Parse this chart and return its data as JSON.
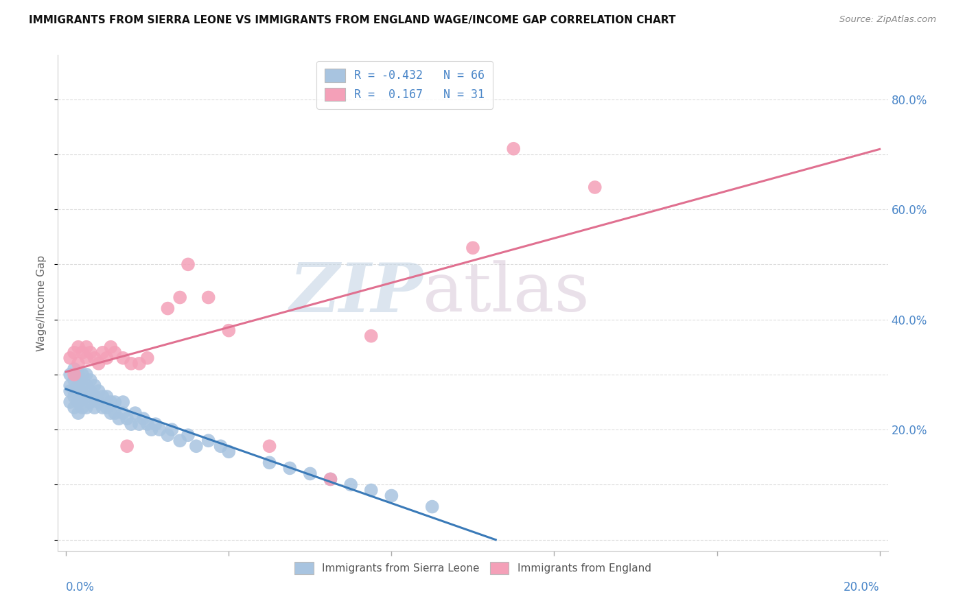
{
  "title": "IMMIGRANTS FROM SIERRA LEONE VS IMMIGRANTS FROM ENGLAND WAGE/INCOME GAP CORRELATION CHART",
  "source": "Source: ZipAtlas.com",
  "ylabel": "Wage/Income Gap",
  "legend_label1": "Immigrants from Sierra Leone",
  "legend_label2": "Immigrants from England",
  "r1": -0.432,
  "n1": 66,
  "r2": 0.167,
  "n2": 31,
  "color1": "#a8c4e0",
  "color2": "#f4a0b8",
  "line_color1": "#3a7ab8",
  "line_color2": "#e07090",
  "watermark_zip": "ZIP",
  "watermark_atlas": "atlas",
  "background_color": "#ffffff",
  "sierra_leone_x": [
    0.001,
    0.001,
    0.001,
    0.001,
    0.002,
    0.002,
    0.002,
    0.002,
    0.002,
    0.003,
    0.003,
    0.003,
    0.003,
    0.003,
    0.004,
    0.004,
    0.004,
    0.004,
    0.005,
    0.005,
    0.005,
    0.005,
    0.006,
    0.006,
    0.006,
    0.007,
    0.007,
    0.007,
    0.008,
    0.008,
    0.009,
    0.009,
    0.01,
    0.01,
    0.011,
    0.011,
    0.012,
    0.012,
    0.013,
    0.014,
    0.014,
    0.015,
    0.016,
    0.017,
    0.018,
    0.019,
    0.02,
    0.021,
    0.022,
    0.023,
    0.025,
    0.026,
    0.028,
    0.03,
    0.032,
    0.035,
    0.038,
    0.04,
    0.05,
    0.055,
    0.06,
    0.065,
    0.07,
    0.075,
    0.08,
    0.09
  ],
  "sierra_leone_y": [
    0.25,
    0.27,
    0.28,
    0.3,
    0.24,
    0.26,
    0.27,
    0.29,
    0.31,
    0.23,
    0.25,
    0.27,
    0.28,
    0.3,
    0.24,
    0.26,
    0.28,
    0.3,
    0.24,
    0.26,
    0.28,
    0.3,
    0.25,
    0.27,
    0.29,
    0.24,
    0.26,
    0.28,
    0.25,
    0.27,
    0.24,
    0.26,
    0.24,
    0.26,
    0.23,
    0.25,
    0.23,
    0.25,
    0.22,
    0.23,
    0.25,
    0.22,
    0.21,
    0.23,
    0.21,
    0.22,
    0.21,
    0.2,
    0.21,
    0.2,
    0.19,
    0.2,
    0.18,
    0.19,
    0.17,
    0.18,
    0.17,
    0.16,
    0.14,
    0.13,
    0.12,
    0.11,
    0.1,
    0.09,
    0.08,
    0.06
  ],
  "england_x": [
    0.001,
    0.002,
    0.002,
    0.003,
    0.003,
    0.004,
    0.005,
    0.005,
    0.006,
    0.007,
    0.008,
    0.009,
    0.01,
    0.011,
    0.012,
    0.014,
    0.015,
    0.016,
    0.018,
    0.02,
    0.025,
    0.028,
    0.03,
    0.035,
    0.04,
    0.05,
    0.065,
    0.075,
    0.1,
    0.11,
    0.13
  ],
  "england_y": [
    0.33,
    0.3,
    0.34,
    0.32,
    0.35,
    0.34,
    0.33,
    0.35,
    0.34,
    0.33,
    0.32,
    0.34,
    0.33,
    0.35,
    0.34,
    0.33,
    0.17,
    0.32,
    0.32,
    0.33,
    0.42,
    0.44,
    0.5,
    0.44,
    0.38,
    0.17,
    0.11,
    0.37,
    0.53,
    0.71,
    0.64
  ],
  "xlim_min": 0.0,
  "xlim_max": 0.2,
  "ylim_min": -0.02,
  "ylim_max": 0.88,
  "ytick_positions": [
    0.2,
    0.4,
    0.6,
    0.8
  ],
  "ytick_labels": [
    "20.0%",
    "40.0%",
    "60.0%",
    "80.0%"
  ],
  "grid_color": "#dddddd",
  "tick_color": "#aaaaaa",
  "label_color": "#4a86c8",
  "spine_color": "#cccccc"
}
